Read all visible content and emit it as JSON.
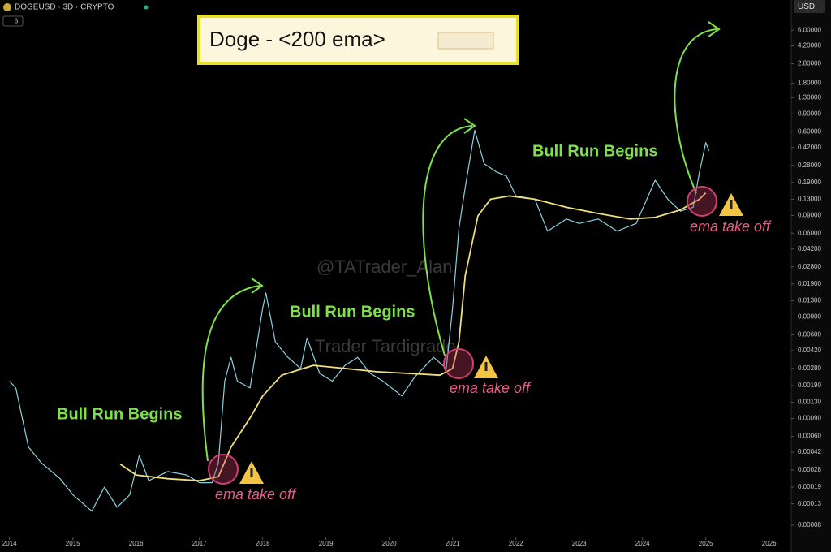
{
  "header": {
    "symbol": "DOGEUSD · 3D · CRYPTO",
    "interval_badge": "6",
    "currency": "USD"
  },
  "chart_data": {
    "type": "line",
    "title": "Doge - <200 ema>",
    "annotations": [
      "Bull Run Begins",
      "Bull Run Begins",
      "Bull Run Begins",
      "ema take off",
      "ema take off",
      "ema take off"
    ],
    "watermarks": [
      "@TATrader_Alan",
      "Trader Tardigrade"
    ],
    "log_scale": true,
    "grid": false,
    "xlim": [
      2013.85,
      2026.35
    ],
    "xticks": [
      2014,
      2015,
      2016,
      2017,
      2018,
      2019,
      2020,
      2021,
      2022,
      2023,
      2024,
      2025,
      2026
    ],
    "ylim": [
      6.3e-05,
      11.9
    ],
    "yticks": [
      {
        "value": 6,
        "label": "6.00000"
      },
      {
        "value": 4.2,
        "label": "4.20000"
      },
      {
        "value": 2.8,
        "label": "2.80000"
      },
      {
        "value": 1.8,
        "label": "1.80000"
      },
      {
        "value": 1.3,
        "label": "1.30000"
      },
      {
        "value": 0.9,
        "label": "0.90000"
      },
      {
        "value": 0.6,
        "label": "0.60000"
      },
      {
        "value": 0.42,
        "label": "0.42000"
      },
      {
        "value": 0.28,
        "label": "0.28000"
      },
      {
        "value": 0.19,
        "label": "0.19000"
      },
      {
        "value": 0.13,
        "label": "0.13000"
      },
      {
        "value": 0.09,
        "label": "0.09000"
      },
      {
        "value": 0.06,
        "label": "0.06000"
      },
      {
        "value": 0.042,
        "label": "0.04200"
      },
      {
        "value": 0.028,
        "label": "0.02800"
      },
      {
        "value": 0.019,
        "label": "0.01900"
      },
      {
        "value": 0.013,
        "label": "0.01300"
      },
      {
        "value": 0.009,
        "label": "0.00900"
      },
      {
        "value": 0.006,
        "label": "0.00600"
      },
      {
        "value": 0.0042,
        "label": "0.00420"
      },
      {
        "value": 0.0028,
        "label": "0.00280"
      },
      {
        "value": 0.0019,
        "label": "0.00190"
      },
      {
        "value": 0.0013,
        "label": "0.00130"
      },
      {
        "value": 0.0009,
        "label": "0.00090"
      },
      {
        "value": 0.0006,
        "label": "0.00060"
      },
      {
        "value": 0.00042,
        "label": "0.00042"
      },
      {
        "value": 0.00028,
        "label": "0.00028"
      },
      {
        "value": 0.00019,
        "label": "0.00019"
      },
      {
        "value": 0.00013,
        "label": "0.00013"
      },
      {
        "value": 8e-05,
        "label": "0.00008"
      }
    ],
    "series": [
      {
        "color": "#8fd0e0",
        "x": [
          2014.0,
          2014.1,
          2014.3,
          2014.5,
          2014.8,
          2015.0,
          2015.3,
          2015.5,
          2015.7,
          2015.9,
          2016.05,
          2016.2,
          2016.5,
          2016.8,
          2017.0,
          2017.2,
          2017.3,
          2017.4,
          2017.5,
          2017.6,
          2017.8,
          2018.0,
          2018.05,
          2018.2,
          2018.4,
          2018.6,
          2018.7,
          2018.9,
          2019.1,
          2019.3,
          2019.5,
          2019.7,
          2019.9,
          2020.2,
          2020.4,
          2020.7,
          2020.9,
          2021.0,
          2021.1,
          2021.2,
          2021.35,
          2021.5,
          2021.7,
          2021.85,
          2022.0,
          2022.3,
          2022.5,
          2022.8,
          2023.0,
          2023.3,
          2023.6,
          2023.9,
          2024.2,
          2024.4,
          2024.6,
          2024.8,
          2024.9,
          2025.0,
          2025.05
        ],
        "values": [
          0.0021,
          0.0018,
          0.00047,
          0.00033,
          0.00023,
          0.00016,
          0.00011,
          0.00019,
          0.00012,
          0.00016,
          0.00039,
          0.00022,
          0.00027,
          0.00025,
          0.00021,
          0.00021,
          0.00033,
          0.0021,
          0.0036,
          0.0021,
          0.0018,
          0.011,
          0.0155,
          0.0051,
          0.0036,
          0.0028,
          0.0056,
          0.0025,
          0.0021,
          0.003,
          0.0036,
          0.0025,
          0.0021,
          0.0015,
          0.0023,
          0.0036,
          0.0028,
          0.011,
          0.067,
          0.17,
          0.62,
          0.29,
          0.24,
          0.22,
          0.14,
          0.13,
          0.063,
          0.083,
          0.075,
          0.083,
          0.063,
          0.075,
          0.2,
          0.13,
          0.099,
          0.108,
          0.24,
          0.47,
          0.39
        ]
      },
      {
        "color": "#f0e07a",
        "x": [
          2015.75,
          2016.0,
          2016.5,
          2017.0,
          2017.3,
          2017.5,
          2017.8,
          2018.0,
          2018.3,
          2018.8,
          2019.3,
          2019.8,
          2020.3,
          2020.8,
          2021.0,
          2021.1,
          2021.2,
          2021.4,
          2021.6,
          2021.9,
          2022.3,
          2022.8,
          2023.3,
          2023.8,
          2024.2,
          2024.6,
          2024.9,
          2025.0
        ],
        "values": [
          0.00032,
          0.00025,
          0.00023,
          0.00022,
          0.00024,
          0.00047,
          0.00091,
          0.0015,
          0.0024,
          0.003,
          0.0028,
          0.0026,
          0.0025,
          0.0024,
          0.0028,
          0.0051,
          0.023,
          0.089,
          0.13,
          0.14,
          0.13,
          0.108,
          0.094,
          0.083,
          0.086,
          0.102,
          0.13,
          0.15
        ]
      }
    ]
  }
}
